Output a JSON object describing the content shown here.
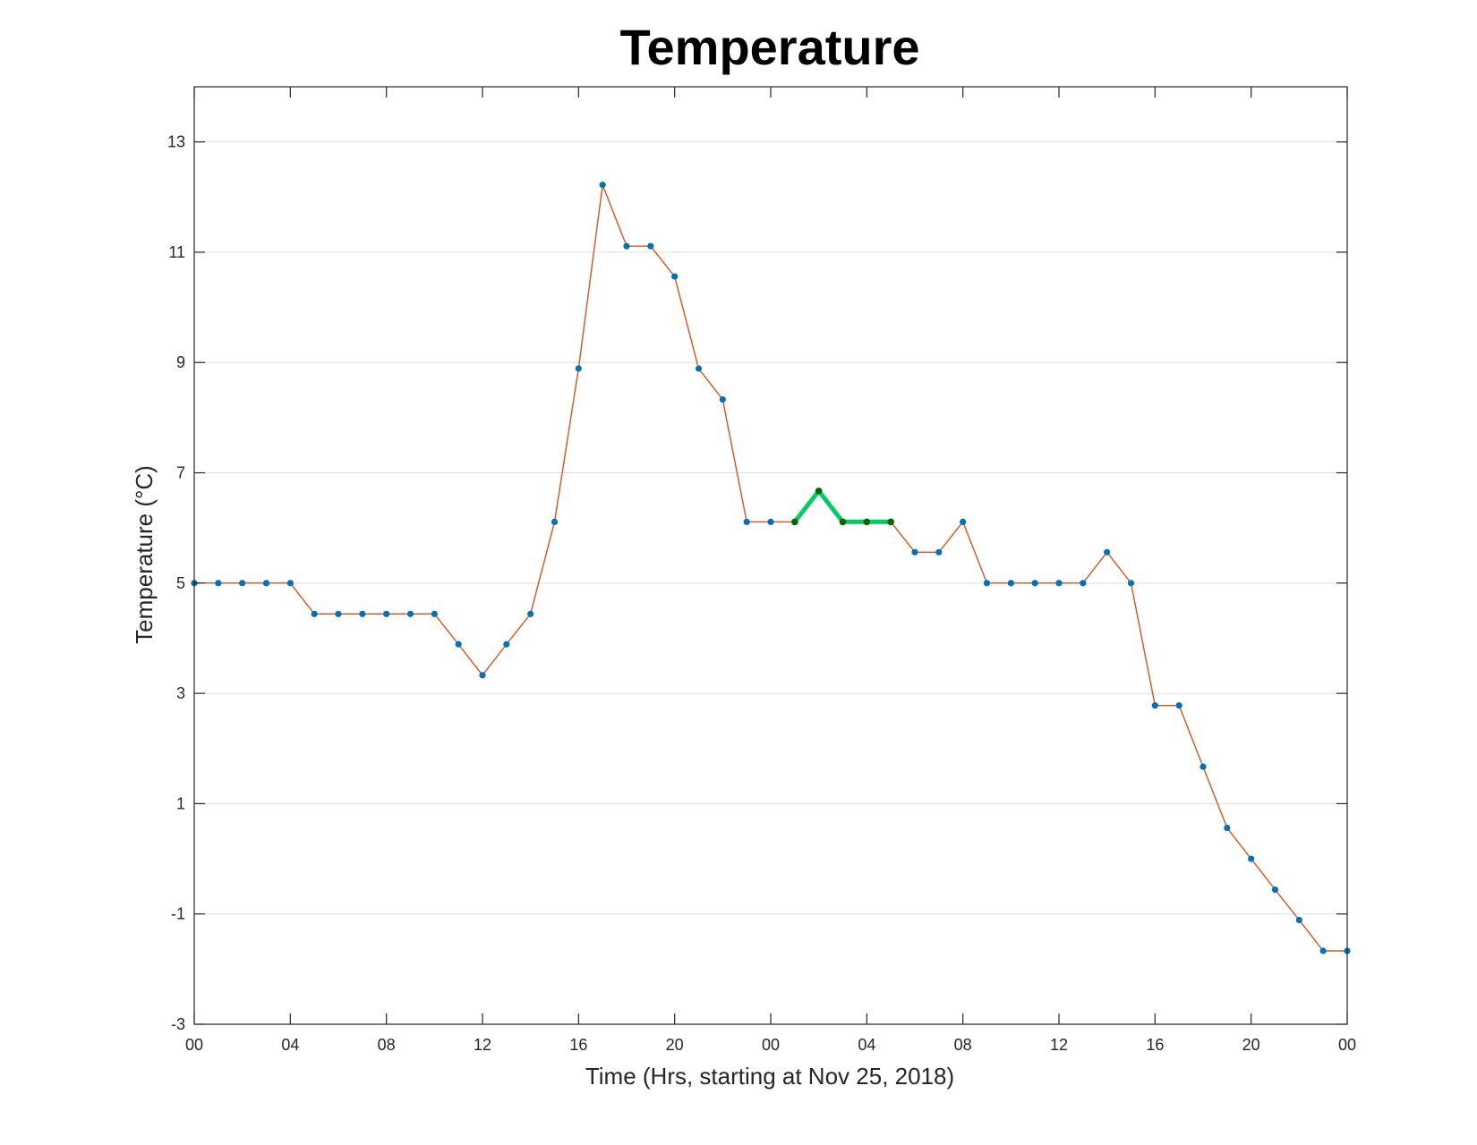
{
  "chart_data": {
    "type": "line",
    "title": "Temperature",
    "xlabel": "Time (Hrs, starting at Nov 25, 2018)",
    "ylabel": "Temperature (°C)",
    "x_hours": [
      0,
      1,
      2,
      3,
      4,
      5,
      6,
      7,
      8,
      9,
      10,
      11,
      12,
      13,
      14,
      15,
      16,
      17,
      18,
      19,
      20,
      21,
      22,
      23,
      24,
      25,
      26,
      27,
      28,
      29,
      30,
      31,
      32,
      33,
      34,
      35,
      36,
      37,
      38,
      39,
      40,
      41,
      42,
      43,
      44,
      45,
      46,
      47,
      48
    ],
    "x_start": "2018-11-25 00:00",
    "xlim": [
      0,
      48
    ],
    "ylim": [
      -3,
      14
    ],
    "x_tick_labels": [
      "00",
      "04",
      "08",
      "12",
      "16",
      "20",
      "00",
      "04",
      "08",
      "12",
      "16",
      "20",
      "00"
    ],
    "y_ticks": [
      -3,
      -1,
      1,
      3,
      5,
      7,
      9,
      11,
      13
    ],
    "grid": "horizontal",
    "series": [
      {
        "values": [
          5.0,
          5.0,
          5.0,
          5.0,
          5.0,
          4.44,
          4.44,
          4.44,
          4.44,
          4.44,
          4.44,
          3.89,
          3.33,
          3.89,
          4.44,
          6.11,
          8.89,
          12.22,
          11.11,
          11.11,
          10.56,
          8.89,
          8.33,
          6.11,
          6.11,
          6.11,
          6.67,
          6.11,
          6.11,
          6.11,
          5.56,
          5.56,
          6.11,
          5.0,
          5.0,
          5.0,
          5.0,
          5.0,
          5.56,
          5.0,
          2.78,
          2.78,
          1.67,
          0.56,
          0.0,
          -0.56,
          -1.11,
          -1.67,
          -1.67
        ],
        "color": "#D95319",
        "marker_color": "#0072BD"
      },
      {
        "values": [
          6.11,
          6.67,
          6.11,
          6.11,
          6.11
        ],
        "x_start_hour": 25,
        "color": "#00CC66",
        "marker_color": "#006600"
      }
    ]
  }
}
